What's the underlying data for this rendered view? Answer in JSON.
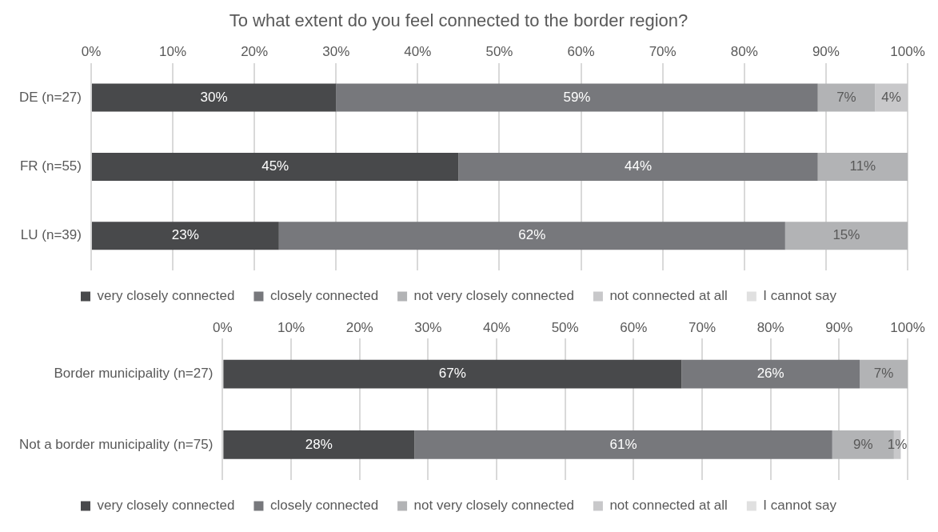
{
  "chart_data": [
    {
      "type": "bar",
      "orientation": "horizontal",
      "stacked": true,
      "title": "To what extent do you feel connected to the border region?",
      "categories": [
        "DE (n=27)",
        "FR (n=55)",
        "LU (n=39)"
      ],
      "series": [
        {
          "name": "very closely connected",
          "color": "#48494b",
          "values": [
            30,
            45,
            23
          ],
          "value_labels": [
            "30%",
            "45%",
            "23%"
          ]
        },
        {
          "name": "closely connected",
          "color": "#77787c",
          "values": [
            59,
            44,
            62
          ],
          "value_labels": [
            "59%",
            "44%",
            "62%"
          ]
        },
        {
          "name": "not very closely connected",
          "color": "#b2b3b5",
          "values": [
            7,
            11,
            15
          ],
          "value_labels": [
            "7%",
            "11%",
            "15%"
          ]
        },
        {
          "name": "not connected at all",
          "color": "#c8c8ca",
          "values": [
            4,
            null,
            null
          ],
          "value_labels": [
            "4%",
            null,
            null
          ]
        },
        {
          "name": "I cannot say",
          "color": "#e0e0e0",
          "values": [
            null,
            null,
            null
          ]
        }
      ],
      "xlim": [
        0,
        100
      ],
      "xticks": [
        {
          "value": 0,
          "label": "0%"
        },
        {
          "value": 10,
          "label": "10%"
        },
        {
          "value": 20,
          "label": "20%"
        },
        {
          "value": 30,
          "label": "30%"
        },
        {
          "value": 40,
          "label": "40%"
        },
        {
          "value": 50,
          "label": "50%"
        },
        {
          "value": 60,
          "label": "60%"
        },
        {
          "value": 70,
          "label": "70%"
        },
        {
          "value": 80,
          "label": "80%"
        },
        {
          "value": 90,
          "label": "90%"
        },
        {
          "value": 100,
          "label": "100%"
        }
      ],
      "grid": "x",
      "legend": "bottom"
    },
    {
      "type": "bar",
      "orientation": "horizontal",
      "stacked": true,
      "categories": [
        "Border municipality (n=27)",
        "Not a border municipality (n=75)"
      ],
      "series": [
        {
          "name": "very closely connected",
          "color": "#48494b",
          "values": [
            67,
            28
          ],
          "value_labels": [
            "67%",
            "28%"
          ]
        },
        {
          "name": "closely connected",
          "color": "#77787c",
          "values": [
            26,
            61
          ],
          "value_labels": [
            "26%",
            "61%"
          ]
        },
        {
          "name": "not very closely connected",
          "color": "#b2b3b5",
          "values": [
            7,
            9
          ],
          "value_labels": [
            "7%",
            "9%"
          ]
        },
        {
          "name": "not connected at all",
          "color": "#c8c8ca",
          "values": [
            null,
            1
          ],
          "value_labels": [
            null,
            "1%"
          ]
        },
        {
          "name": "I cannot say",
          "color": "#e0e0e0",
          "values": [
            null,
            null
          ]
        }
      ],
      "xlim": [
        0,
        100
      ],
      "xticks": [
        {
          "value": 0,
          "label": "0%"
        },
        {
          "value": 10,
          "label": "10%"
        },
        {
          "value": 20,
          "label": "20%"
        },
        {
          "value": 30,
          "label": "30%"
        },
        {
          "value": 40,
          "label": "40%"
        },
        {
          "value": 50,
          "label": "50%"
        },
        {
          "value": 60,
          "label": "60%"
        },
        {
          "value": 70,
          "label": "70%"
        },
        {
          "value": 80,
          "label": "80%"
        },
        {
          "value": 90,
          "label": "90%"
        },
        {
          "value": 100,
          "label": "100%"
        }
      ],
      "grid": "x",
      "legend": "bottom"
    }
  ]
}
